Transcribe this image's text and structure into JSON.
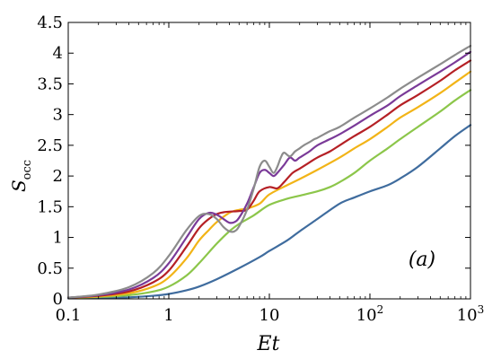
{
  "chart_data": {
    "type": "line",
    "xlabel": "Et",
    "ylabel_main": "S",
    "ylabel_sub": "occ",
    "panel_label": "(a)",
    "xscale": "log",
    "xlim": [
      0.1,
      1000
    ],
    "ylim": [
      0,
      4.5
    ],
    "xticks": [
      {
        "value": 0.1,
        "label": "0.1",
        "sup": ""
      },
      {
        "value": 1,
        "label": "1",
        "sup": ""
      },
      {
        "value": 10,
        "label": "10",
        "sup": ""
      },
      {
        "value": 100,
        "label": "10",
        "sup": "2"
      },
      {
        "value": 1000,
        "label": "10",
        "sup": "3"
      }
    ],
    "yticks": [
      {
        "value": 0,
        "label": "0"
      },
      {
        "value": 0.5,
        "label": "0.5"
      },
      {
        "value": 1,
        "label": "1"
      },
      {
        "value": 1.5,
        "label": "1.5"
      },
      {
        "value": 2,
        "label": "2"
      },
      {
        "value": 2.5,
        "label": "2.5"
      },
      {
        "value": 3,
        "label": "3"
      },
      {
        "value": 3.5,
        "label": "3.5"
      },
      {
        "value": 4,
        "label": "4"
      },
      {
        "value": 4.5,
        "label": "4.5"
      }
    ],
    "grid": false,
    "series": [
      {
        "color": "#3f6c9e",
        "points": [
          [
            0.1,
            0.01
          ],
          [
            0.2,
            0.015
          ],
          [
            0.4,
            0.025
          ],
          [
            0.7,
            0.05
          ],
          [
            1,
            0.08
          ],
          [
            1.5,
            0.14
          ],
          [
            2,
            0.2
          ],
          [
            3,
            0.32
          ],
          [
            5,
            0.5
          ],
          [
            8,
            0.68
          ],
          [
            10,
            0.78
          ],
          [
            15,
            0.95
          ],
          [
            20,
            1.1
          ],
          [
            30,
            1.3
          ],
          [
            50,
            1.55
          ],
          [
            70,
            1.65
          ],
          [
            100,
            1.75
          ],
          [
            150,
            1.85
          ],
          [
            200,
            1.96
          ],
          [
            300,
            2.15
          ],
          [
            500,
            2.45
          ],
          [
            700,
            2.65
          ],
          [
            1000,
            2.83
          ]
        ]
      },
      {
        "color": "#8cc64a",
        "points": [
          [
            0.1,
            0.02
          ],
          [
            0.2,
            0.03
          ],
          [
            0.4,
            0.06
          ],
          [
            0.7,
            0.12
          ],
          [
            1,
            0.2
          ],
          [
            1.5,
            0.38
          ],
          [
            2,
            0.58
          ],
          [
            3,
            0.9
          ],
          [
            4,
            1.1
          ],
          [
            5,
            1.22
          ],
          [
            7,
            1.36
          ],
          [
            10,
            1.53
          ],
          [
            15,
            1.63
          ],
          [
            20,
            1.68
          ],
          [
            30,
            1.75
          ],
          [
            40,
            1.82
          ],
          [
            50,
            1.9
          ],
          [
            70,
            2.05
          ],
          [
            100,
            2.25
          ],
          [
            150,
            2.45
          ],
          [
            200,
            2.6
          ],
          [
            300,
            2.8
          ],
          [
            500,
            3.05
          ],
          [
            700,
            3.23
          ],
          [
            1000,
            3.4
          ]
        ]
      },
      {
        "color": "#f2b417",
        "points": [
          [
            0.1,
            0.02
          ],
          [
            0.2,
            0.04
          ],
          [
            0.4,
            0.09
          ],
          [
            0.7,
            0.2
          ],
          [
            1,
            0.35
          ],
          [
            1.5,
            0.66
          ],
          [
            2,
            0.95
          ],
          [
            2.5,
            1.12
          ],
          [
            3,
            1.25
          ],
          [
            4,
            1.4
          ],
          [
            5,
            1.45
          ],
          [
            6,
            1.47
          ],
          [
            8,
            1.55
          ],
          [
            10,
            1.7
          ],
          [
            15,
            1.85
          ],
          [
            20,
            1.95
          ],
          [
            30,
            2.1
          ],
          [
            50,
            2.3
          ],
          [
            70,
            2.45
          ],
          [
            100,
            2.6
          ],
          [
            150,
            2.8
          ],
          [
            200,
            2.95
          ],
          [
            300,
            3.12
          ],
          [
            500,
            3.35
          ],
          [
            700,
            3.52
          ],
          [
            1000,
            3.7
          ]
        ]
      },
      {
        "color": "#b52025",
        "points": [
          [
            0.1,
            0.02
          ],
          [
            0.2,
            0.05
          ],
          [
            0.4,
            0.12
          ],
          [
            0.7,
            0.27
          ],
          [
            1,
            0.46
          ],
          [
            1.5,
            0.85
          ],
          [
            2,
            1.15
          ],
          [
            2.5,
            1.3
          ],
          [
            3,
            1.38
          ],
          [
            3.5,
            1.41
          ],
          [
            4,
            1.42
          ],
          [
            5,
            1.43
          ],
          [
            6,
            1.45
          ],
          [
            7,
            1.6
          ],
          [
            8,
            1.75
          ],
          [
            10,
            1.82
          ],
          [
            12,
            1.8
          ],
          [
            14,
            1.9
          ],
          [
            17,
            2.05
          ],
          [
            20,
            2.12
          ],
          [
            25,
            2.22
          ],
          [
            30,
            2.3
          ],
          [
            40,
            2.4
          ],
          [
            50,
            2.5
          ],
          [
            70,
            2.65
          ],
          [
            100,
            2.8
          ],
          [
            150,
            3.0
          ],
          [
            200,
            3.15
          ],
          [
            300,
            3.32
          ],
          [
            500,
            3.55
          ],
          [
            700,
            3.72
          ],
          [
            1000,
            3.88
          ]
        ]
      },
      {
        "color": "#7a3a98",
        "points": [
          [
            0.1,
            0.02
          ],
          [
            0.2,
            0.06
          ],
          [
            0.4,
            0.15
          ],
          [
            0.7,
            0.34
          ],
          [
            1,
            0.58
          ],
          [
            1.5,
            1.0
          ],
          [
            2,
            1.3
          ],
          [
            2.5,
            1.4
          ],
          [
            3,
            1.37
          ],
          [
            3.5,
            1.3
          ],
          [
            4,
            1.24
          ],
          [
            4.5,
            1.25
          ],
          [
            5,
            1.32
          ],
          [
            6,
            1.55
          ],
          [
            7,
            1.82
          ],
          [
            8,
            2.05
          ],
          [
            9,
            2.1
          ],
          [
            10,
            2.05
          ],
          [
            11,
            2.0
          ],
          [
            12,
            2.05
          ],
          [
            14,
            2.18
          ],
          [
            16,
            2.3
          ],
          [
            18,
            2.25
          ],
          [
            20,
            2.3
          ],
          [
            25,
            2.4
          ],
          [
            30,
            2.5
          ],
          [
            40,
            2.6
          ],
          [
            50,
            2.68
          ],
          [
            70,
            2.82
          ],
          [
            100,
            2.98
          ],
          [
            150,
            3.15
          ],
          [
            200,
            3.3
          ],
          [
            300,
            3.48
          ],
          [
            500,
            3.7
          ],
          [
            700,
            3.85
          ],
          [
            1000,
            4.02
          ]
        ]
      },
      {
        "color": "#8c8c8c",
        "points": [
          [
            0.1,
            0.02
          ],
          [
            0.2,
            0.07
          ],
          [
            0.4,
            0.19
          ],
          [
            0.7,
            0.42
          ],
          [
            1,
            0.7
          ],
          [
            1.5,
            1.12
          ],
          [
            2,
            1.35
          ],
          [
            2.5,
            1.38
          ],
          [
            3,
            1.3
          ],
          [
            3.5,
            1.17
          ],
          [
            4,
            1.1
          ],
          [
            4.5,
            1.1
          ],
          [
            5,
            1.18
          ],
          [
            6,
            1.45
          ],
          [
            7,
            1.8
          ],
          [
            8,
            2.15
          ],
          [
            9,
            2.25
          ],
          [
            10,
            2.15
          ],
          [
            11,
            2.05
          ],
          [
            12,
            2.15
          ],
          [
            13,
            2.3
          ],
          [
            14,
            2.38
          ],
          [
            16,
            2.32
          ],
          [
            18,
            2.4
          ],
          [
            20,
            2.45
          ],
          [
            22,
            2.5
          ],
          [
            25,
            2.55
          ],
          [
            28,
            2.6
          ],
          [
            30,
            2.62
          ],
          [
            35,
            2.68
          ],
          [
            40,
            2.73
          ],
          [
            50,
            2.8
          ],
          [
            70,
            2.95
          ],
          [
            100,
            3.1
          ],
          [
            150,
            3.28
          ],
          [
            200,
            3.42
          ],
          [
            300,
            3.6
          ],
          [
            500,
            3.82
          ],
          [
            700,
            3.97
          ],
          [
            1000,
            4.12
          ]
        ]
      }
    ]
  }
}
